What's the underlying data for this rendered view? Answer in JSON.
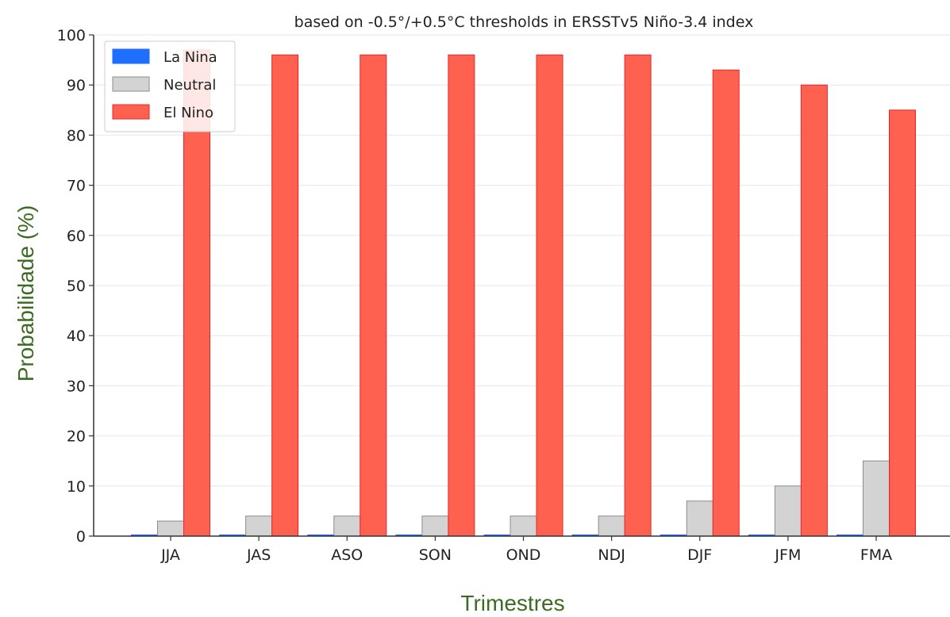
{
  "chart_data": {
    "type": "bar",
    "title": "based on -0.5°/+0.5°C thresholds in ERSSTv5 Niño-3.4 index",
    "xlabel": "Trimestres",
    "ylabel": "Probabilidade (%)",
    "categories": [
      "JJA",
      "JAS",
      "ASO",
      "SON",
      "OND",
      "NDJ",
      "DJF",
      "JFM",
      "FMA"
    ],
    "ylim": [
      0,
      100
    ],
    "yticks": [
      0,
      10,
      20,
      30,
      40,
      50,
      60,
      70,
      80,
      90,
      100
    ],
    "grid": true,
    "legend_position": "top-left",
    "series": [
      {
        "name": "La Nina",
        "color": "#1f6fff",
        "edge": "#1f6fff",
        "values": [
          0,
          0,
          0,
          0,
          0,
          0,
          0,
          0,
          0
        ]
      },
      {
        "name": "Neutral",
        "color": "#d3d3d3",
        "edge": "#8c8c8c",
        "values": [
          3,
          4,
          4,
          4,
          4,
          4,
          7,
          10,
          15
        ]
      },
      {
        "name": "El Nino",
        "color": "#ff6150",
        "edge": "#e8262a",
        "values": [
          97,
          96,
          96,
          96,
          96,
          96,
          93,
          90,
          85
        ]
      }
    ],
    "axis_label_color": "#3d6b22"
  }
}
